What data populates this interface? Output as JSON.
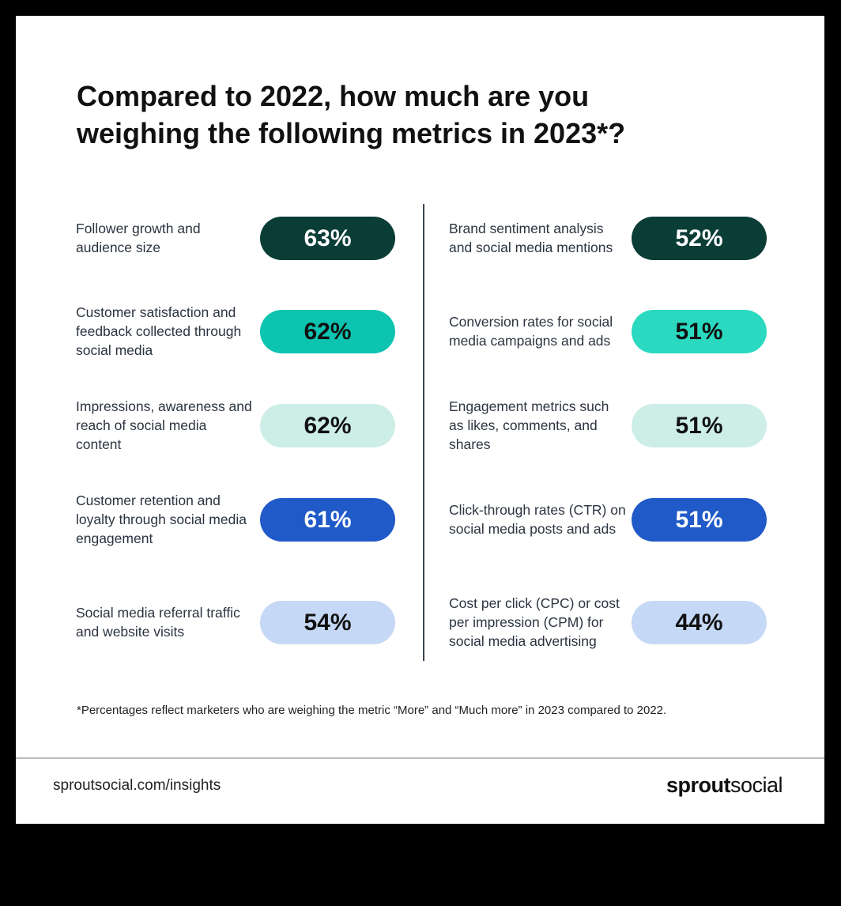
{
  "chart_data": {
    "type": "table",
    "title": "Compared to 2022, how much are you weighing the following metrics in 2023*?",
    "left": [
      {
        "label": "Follower growth and audience size",
        "value": "63%",
        "color": "#0b3d37",
        "text_color": "#ffffff"
      },
      {
        "label": "Customer satisfaction and feedback collected through social media",
        "value": "62%",
        "color": "#0cc4b0",
        "text_color": "#111111"
      },
      {
        "label": "Impressions, awareness and reach of social media content",
        "value": "62%",
        "color": "#cdeee7",
        "text_color": "#111111"
      },
      {
        "label": "Customer retention and loyalty through social media engagement",
        "value": "61%",
        "color": "#205ac8",
        "text_color": "#ffffff"
      },
      {
        "label": "Social media referral traffic and website visits",
        "value": "54%",
        "color": "#c5d8f5",
        "text_color": "#111111"
      }
    ],
    "right": [
      {
        "label": "Brand sentiment analysis and social media mentions",
        "value": "52%",
        "color": "#0b3d37",
        "text_color": "#ffffff"
      },
      {
        "label": "Conversion rates for social media campaigns and ads",
        "value": "51%",
        "color": "#2ad9c0",
        "text_color": "#111111"
      },
      {
        "label": "Engagement metrics such as likes, comments, and shares",
        "value": "51%",
        "color": "#cdeee7",
        "text_color": "#111111"
      },
      {
        "label": "Click-through rates (CTR) on social media posts and ads",
        "value": "51%",
        "color": "#205ac8",
        "text_color": "#ffffff"
      },
      {
        "label": "Cost per click (CPC) or cost per impression (CPM) for social media advertising",
        "value": "44%",
        "color": "#c5d8f5",
        "text_color": "#111111"
      }
    ],
    "footnote": "*Percentages reflect marketers who are weighing the metric “More” and “Much more” in 2023 compared to 2022."
  },
  "footer": {
    "url": "sproutsocial.com/insights",
    "logo_bold": "sprout",
    "logo_light": "social"
  }
}
